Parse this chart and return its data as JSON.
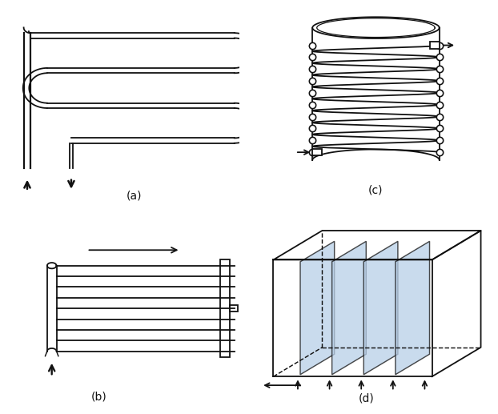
{
  "bg_color": "#ffffff",
  "lc": "#111111",
  "panel_color": "#b8cfe8",
  "lw": 1.3,
  "label_fontsize": 10,
  "label_a": "(a)",
  "label_b": "(b)",
  "label_c": "(c)",
  "label_d": "(d)"
}
